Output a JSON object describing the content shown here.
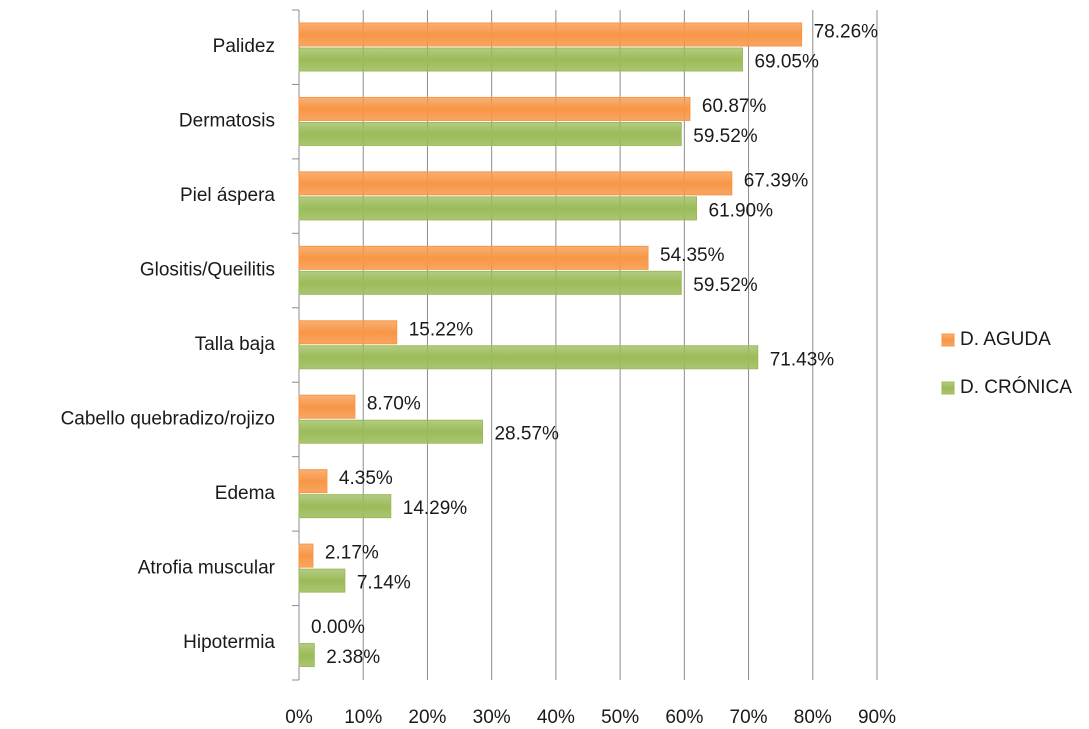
{
  "chart_data": {
    "type": "bar",
    "orientation": "horizontal",
    "categories": [
      "Palidez",
      "Dermatosis",
      "Piel áspera",
      "Glositis/Queilitis",
      "Talla baja",
      "Cabello quebradizo/rojizo",
      "Edema",
      "Atrofia muscular",
      "Hipotermia"
    ],
    "series": [
      {
        "name": "D. AGUDA",
        "color": "#f79646",
        "values": [
          78.26,
          60.87,
          67.39,
          54.35,
          15.22,
          8.7,
          4.35,
          2.17,
          0.0
        ],
        "value_labels": [
          "78.26%",
          "60.87%",
          "67.39%",
          "54.35%",
          "15.22%",
          "8.70%",
          "4.35%",
          "2.17%",
          "0.00%"
        ]
      },
      {
        "name": "D. CRÓNICA",
        "color": "#9bbb59",
        "values": [
          69.05,
          59.52,
          61.9,
          59.52,
          71.43,
          28.57,
          14.29,
          7.14,
          2.38
        ],
        "value_labels": [
          "69.05%",
          "59.52%",
          "61.90%",
          "59.52%",
          "71.43%",
          "28.57%",
          "14.29%",
          "7.14%",
          "2.38%"
        ]
      }
    ],
    "xlim": [
      0,
      90
    ],
    "xticks": [
      {
        "value": 0,
        "label": "0%"
      },
      {
        "value": 10,
        "label": "10%"
      },
      {
        "value": 20,
        "label": "20%"
      },
      {
        "value": 30,
        "label": "30%"
      },
      {
        "value": 40,
        "label": "40%"
      },
      {
        "value": 50,
        "label": "50%"
      },
      {
        "value": 60,
        "label": "60%"
      },
      {
        "value": 70,
        "label": "70%"
      },
      {
        "value": 80,
        "label": "80%"
      },
      {
        "value": 90,
        "label": "90%"
      }
    ],
    "grid": true,
    "legend": "right"
  }
}
